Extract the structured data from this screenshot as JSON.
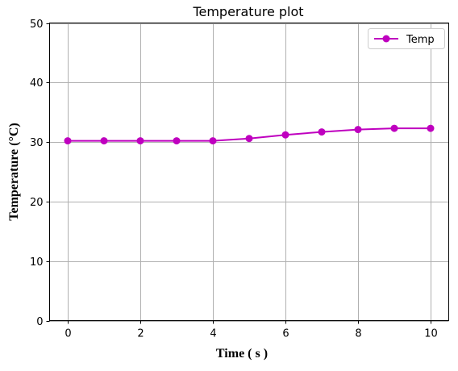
{
  "chart_data": {
    "type": "line",
    "title": "Temperature plot",
    "xlabel": "Time ( s )",
    "ylabel": "Temperature (°C)",
    "xlim": [
      -0.5,
      10.5
    ],
    "ylim": [
      0,
      50
    ],
    "xticks": [
      0,
      2,
      4,
      6,
      8,
      10
    ],
    "yticks": [
      0,
      10,
      20,
      30,
      40,
      50
    ],
    "grid": true,
    "legend": "top-right",
    "series": [
      {
        "name": "Temp",
        "color": "#bf00bf",
        "marker": "circle",
        "x": [
          0,
          1,
          2,
          3,
          4,
          5,
          6,
          7,
          8,
          9,
          10
        ],
        "y": [
          30.2,
          30.2,
          30.2,
          30.2,
          30.2,
          30.6,
          31.2,
          31.7,
          32.1,
          32.3,
          32.3
        ]
      }
    ]
  }
}
